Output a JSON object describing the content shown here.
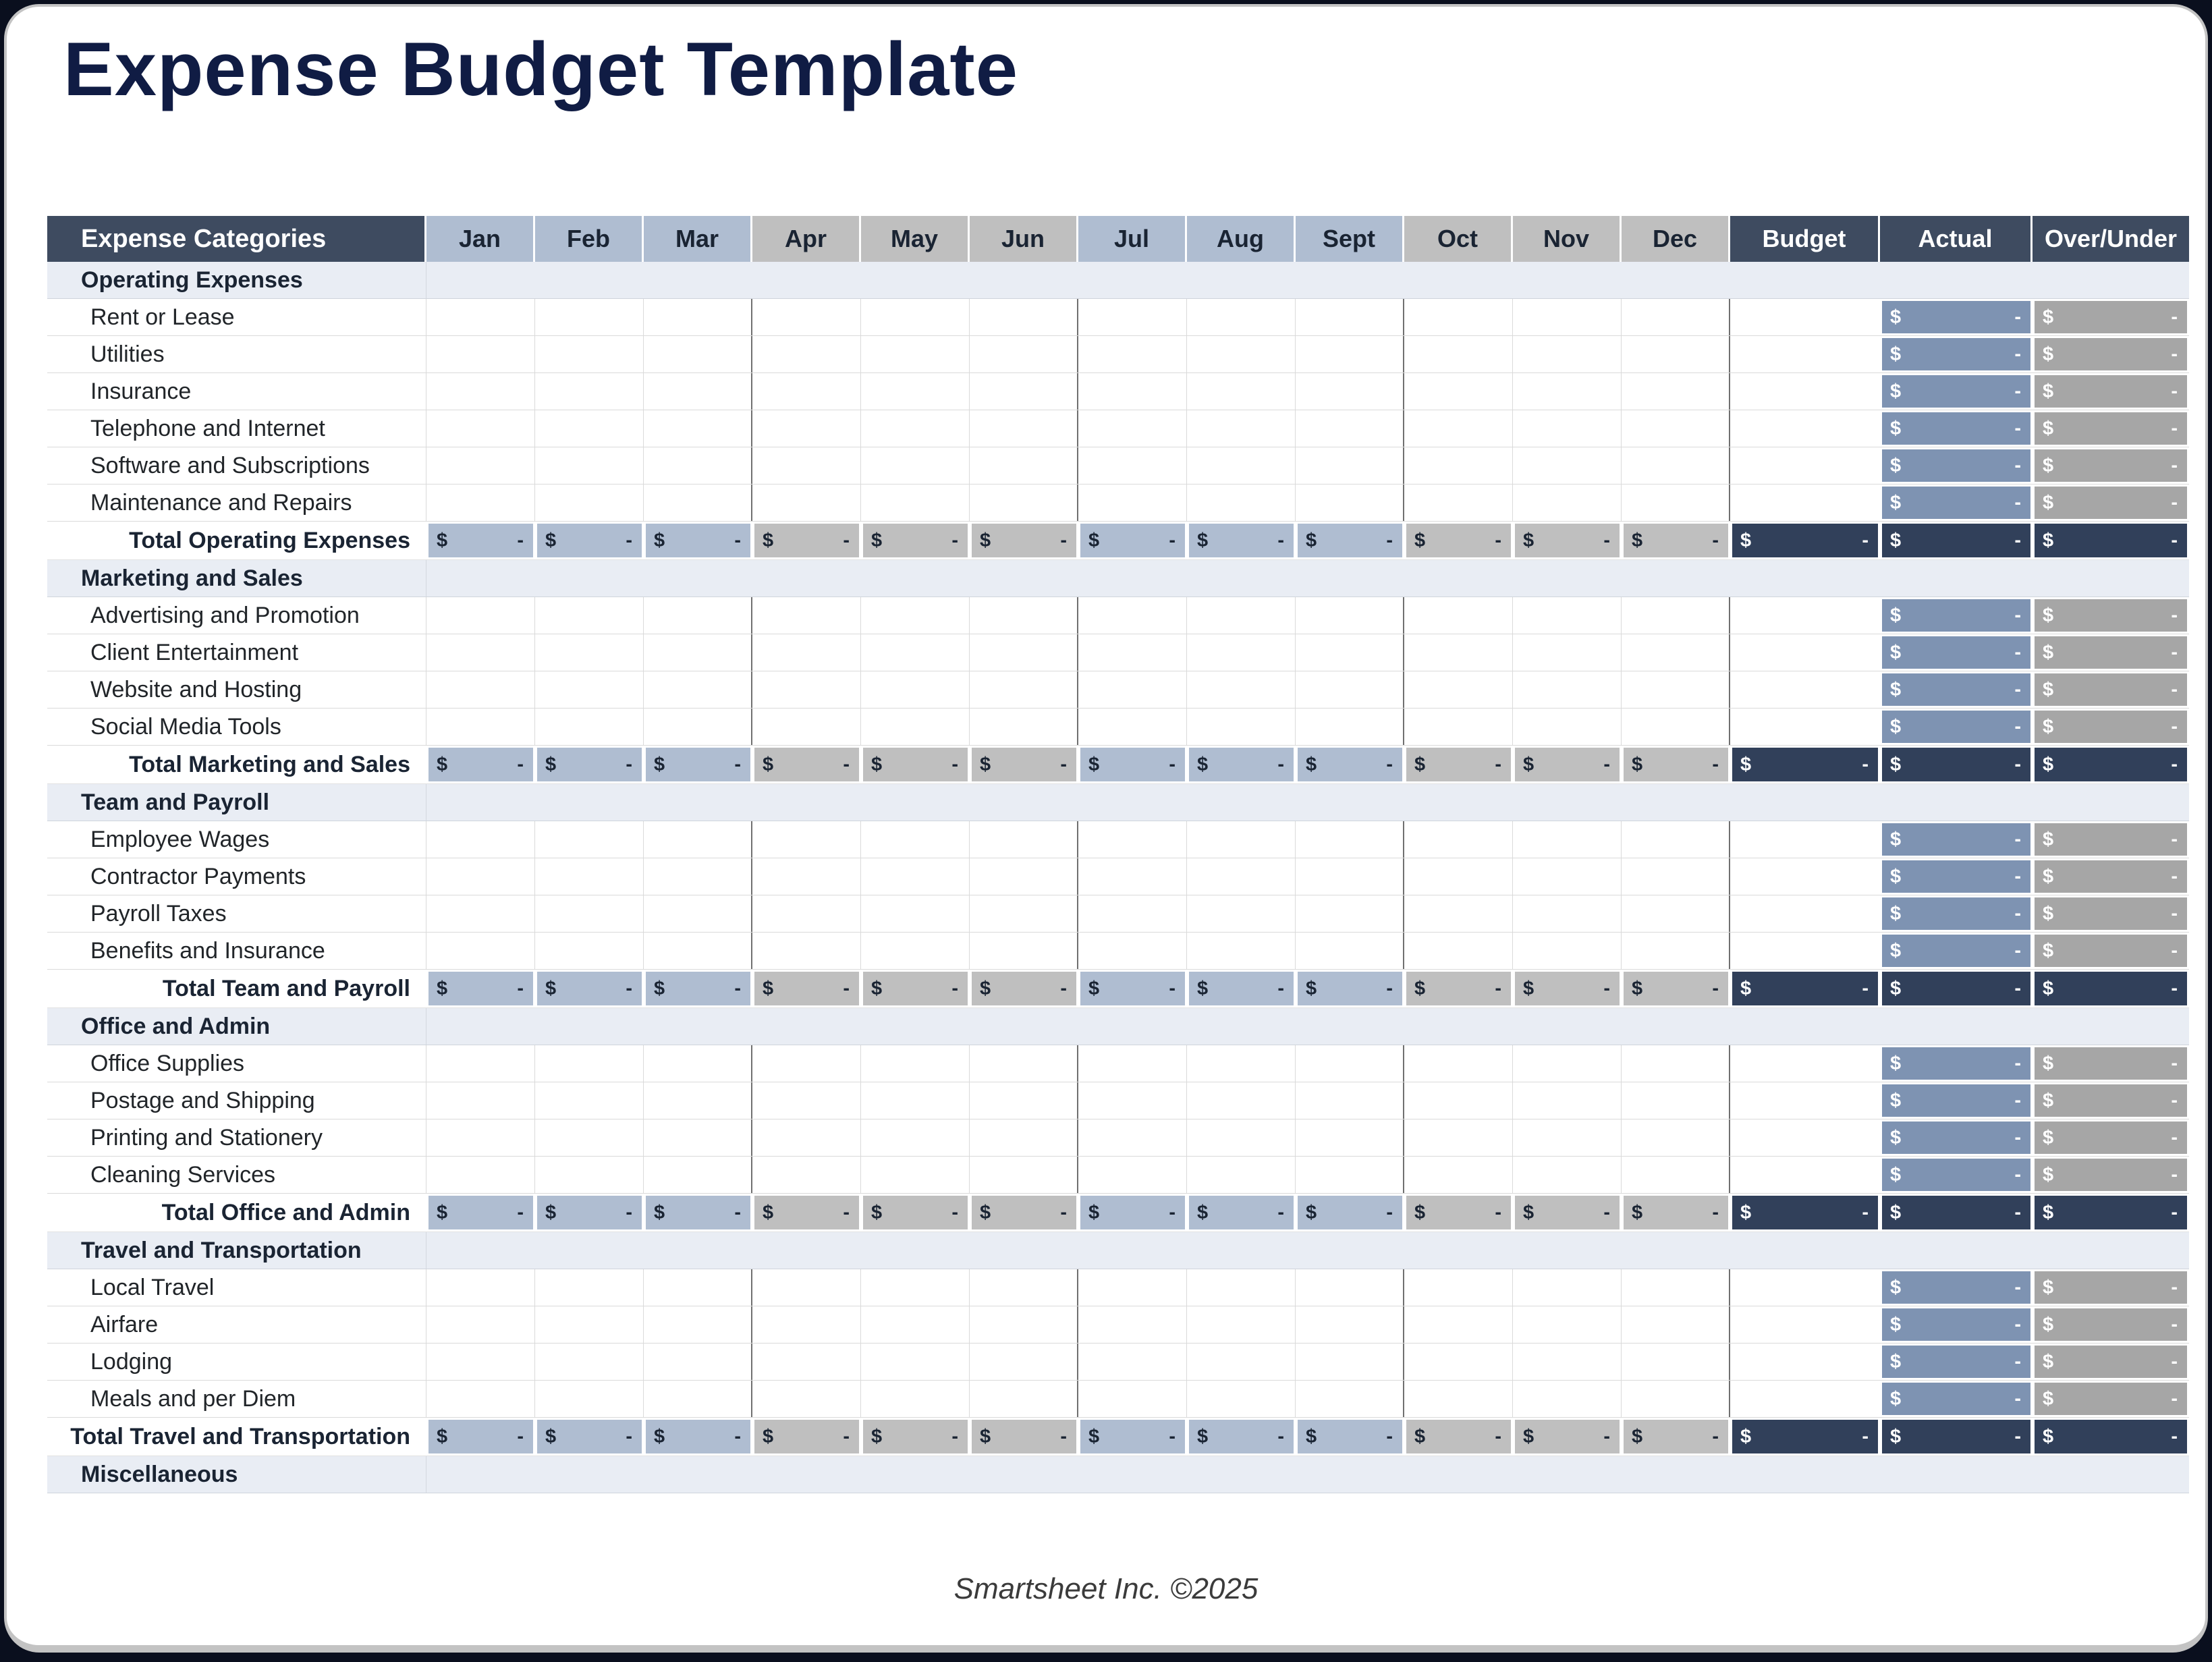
{
  "title": "Expense Budget Template",
  "footer": "Smartsheet Inc. ©2025",
  "table": {
    "label_header": "Expense Categories",
    "months": [
      "Jan",
      "Feb",
      "Mar",
      "Apr",
      "May",
      "Jun",
      "Jul",
      "Aug",
      "Sept",
      "Oct",
      "Nov",
      "Dec"
    ],
    "summary_headers": [
      "Budget",
      "Actual",
      "Over/Under"
    ],
    "currency_symbol": "$",
    "empty_value": "-",
    "sections": [
      {
        "name": "Operating Expenses",
        "items": [
          "Rent or Lease",
          "Utilities",
          "Insurance",
          "Telephone and Internet",
          "Software and Subscriptions",
          "Maintenance and Repairs"
        ],
        "total_label": "Total Operating Expenses"
      },
      {
        "name": "Marketing and Sales",
        "items": [
          "Advertising and Promotion",
          "Client Entertainment",
          "Website and Hosting",
          "Social Media Tools"
        ],
        "total_label": "Total Marketing and Sales"
      },
      {
        "name": "Team and Payroll",
        "items": [
          "Employee Wages",
          "Contractor Payments",
          "Payroll Taxes",
          "Benefits and Insurance"
        ],
        "total_label": "Total Team and Payroll"
      },
      {
        "name": "Office and Admin",
        "items": [
          "Office Supplies",
          "Postage and Shipping",
          "Printing and Stationery",
          "Cleaning Services"
        ],
        "total_label": "Total Office and Admin"
      },
      {
        "name": "Travel and Transportation",
        "items": [
          "Local Travel",
          "Airfare",
          "Lodging",
          "Meals and per Diem"
        ],
        "total_label": "Total Travel and Transportation"
      },
      {
        "name": "Miscellaneous",
        "items": [],
        "total_label": null
      }
    ]
  },
  "colors": {
    "title_navy": "#101c44",
    "header_dark": "#3e4b60",
    "month_blue": "#afbdd1",
    "month_gray": "#bfbfbf",
    "section_bg": "#e9edf4",
    "total_dark": "#31405a",
    "actual_blue": "#7e93b2",
    "over_gray": "#a6a6a6"
  }
}
